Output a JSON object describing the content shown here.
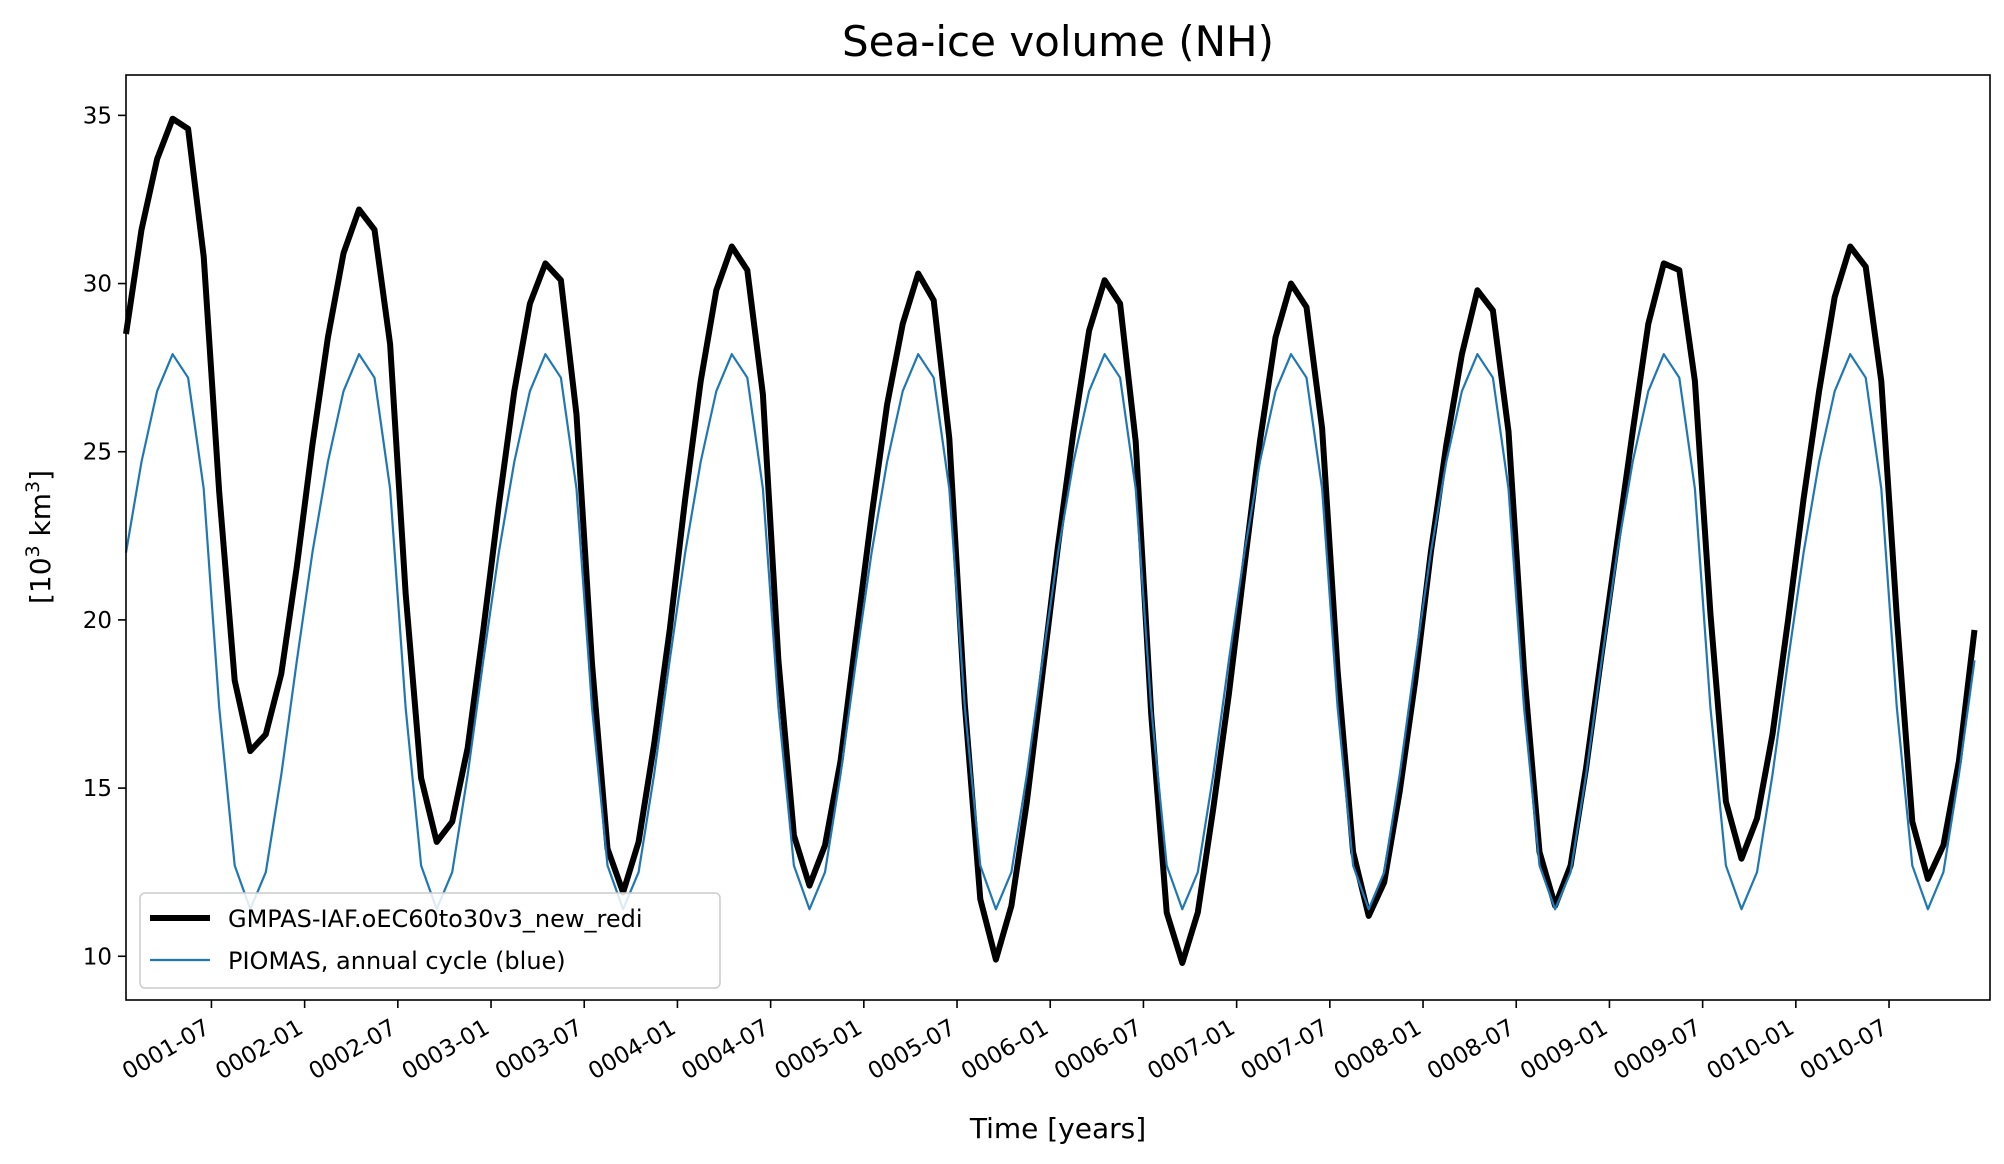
{
  "chart_data": {
    "type": "line",
    "title": "Sea-ice volume (NH)",
    "xlabel": "Time [years]",
    "ylabel_main": "[10",
    "ylabel_sup1": "3",
    "ylabel_mid": " km",
    "ylabel_sup2": "3",
    "ylabel_end": "]",
    "xlim_months": [
      0.5,
      120.5
    ],
    "ylim": [
      8.7,
      36.2
    ],
    "y_ticks": [
      10,
      15,
      20,
      25,
      30,
      35
    ],
    "y_tick_labels": [
      "10",
      "15",
      "20",
      "25",
      "30",
      "35"
    ],
    "x_ticks_month_index": [
      6,
      12,
      18,
      24,
      30,
      36,
      42,
      48,
      54,
      60,
      66,
      72,
      78,
      84,
      90,
      96,
      102,
      108,
      114
    ],
    "x_tick_labels": [
      "0001-07",
      "0002-01",
      "0002-07",
      "0003-01",
      "0003-07",
      "0004-01",
      "0004-07",
      "0005-01",
      "0005-07",
      "0006-01",
      "0006-07",
      "0007-01",
      "0007-07",
      "0008-01",
      "0008-07",
      "0009-01",
      "0009-07",
      "0010-01",
      "0010-07"
    ],
    "grid": false,
    "legend_position": "lower-left",
    "series": [
      {
        "name": "GMPAS-IAF.oEC60to30v3_new_redi",
        "color": "#000000",
        "x_month_index": [
          0.5,
          1.5,
          2.5,
          3.5,
          4.5,
          5.5,
          6.5,
          7.5,
          8.5,
          9.5,
          10.5,
          11.5,
          12.5,
          13.5,
          14.5,
          15.5,
          16.5,
          17.5,
          18.5,
          19.5,
          20.5,
          21.5,
          22.5,
          23.5,
          24.5,
          25.5,
          26.5,
          27.5,
          28.5,
          29.5,
          30.5,
          31.5,
          32.5,
          33.5,
          34.5,
          35.5,
          36.5,
          37.5,
          38.5,
          39.5,
          40.5,
          41.5,
          42.5,
          43.5,
          44.5,
          45.5,
          46.5,
          47.5,
          48.5,
          49.5,
          50.5,
          51.5,
          52.5,
          53.5,
          54.5,
          55.5,
          56.5,
          57.5,
          58.5,
          59.5,
          60.5,
          61.5,
          62.5,
          63.5,
          64.5,
          65.5,
          66.5,
          67.5,
          68.5,
          69.5,
          70.5,
          71.5,
          72.5,
          73.5,
          74.5,
          75.5,
          76.5,
          77.5,
          78.5,
          79.5,
          80.5,
          81.5,
          82.5,
          83.5,
          84.5,
          85.5,
          86.5,
          87.5,
          88.5,
          89.5,
          90.5,
          91.5,
          92.5,
          93.5,
          94.5,
          95.5,
          96.5,
          97.5,
          98.5,
          99.5,
          100.5,
          101.5,
          102.5,
          103.5,
          104.5,
          105.5,
          106.5,
          107.5,
          108.5,
          109.5,
          110.5,
          111.5,
          112.5,
          113.5,
          114.5,
          115.5,
          116.5,
          117.5,
          118.5,
          119.5,
          120.5
        ],
        "values": [
          28.5,
          31.6,
          33.7,
          34.9,
          34.6,
          30.8,
          23.8,
          18.2,
          16.1,
          16.6,
          18.4,
          21.6,
          25.2,
          28.4,
          30.9,
          32.2,
          31.6,
          28.2,
          20.8,
          15.3,
          13.4,
          14.0,
          16.2,
          19.7,
          23.4,
          26.8,
          29.4,
          30.6,
          30.1,
          26.1,
          18.7,
          13.2,
          11.9,
          13.4,
          16.3,
          19.7,
          23.6,
          27.1,
          29.8,
          31.1,
          30.4,
          26.7,
          18.8,
          13.6,
          12.1,
          13.3,
          15.8,
          19.5,
          23.1,
          26.4,
          28.8,
          30.3,
          29.5,
          25.4,
          17.5,
          11.7,
          9.9,
          11.5,
          14.6,
          18.4,
          22.2,
          25.6,
          28.6,
          30.1,
          29.4,
          25.3,
          17.2,
          11.3,
          9.8,
          11.3,
          14.4,
          17.8,
          21.6,
          25.3,
          28.4,
          30.0,
          29.3,
          25.7,
          18.5,
          13.1,
          11.2,
          12.2,
          14.9,
          18.2,
          22.0,
          25.2,
          27.9,
          29.8,
          29.2,
          25.6,
          18.5,
          13.1,
          11.5,
          12.7,
          15.6,
          19.0,
          22.3,
          25.6,
          28.8,
          30.6,
          30.4,
          27.1,
          20.2,
          14.6,
          12.9,
          14.1,
          16.6,
          20.0,
          23.6,
          26.8,
          29.6,
          31.1,
          30.5,
          27.1,
          20.1,
          14.0,
          12.3,
          13.3,
          15.8,
          19.7
        ]
      },
      {
        "name": "PIOMAS, annual cycle (blue)",
        "color": "#1f77b4",
        "x_month_index": [
          0.5,
          1.5,
          2.5,
          3.5,
          4.5,
          5.5,
          6.5,
          7.5,
          8.5,
          9.5,
          10.5,
          11.5,
          12.5,
          13.5,
          14.5,
          15.5,
          16.5,
          17.5,
          18.5,
          19.5,
          20.5,
          21.5,
          22.5,
          23.5,
          24.5,
          25.5,
          26.5,
          27.5,
          28.5,
          29.5,
          30.5,
          31.5,
          32.5,
          33.5,
          34.5,
          35.5,
          36.5,
          37.5,
          38.5,
          39.5,
          40.5,
          41.5,
          42.5,
          43.5,
          44.5,
          45.5,
          46.5,
          47.5,
          48.5,
          49.5,
          50.5,
          51.5,
          52.5,
          53.5,
          54.5,
          55.5,
          56.5,
          57.5,
          58.5,
          59.5,
          60.5,
          61.5,
          62.5,
          63.5,
          64.5,
          65.5,
          66.5,
          67.5,
          68.5,
          69.5,
          70.5,
          71.5,
          72.5,
          73.5,
          74.5,
          75.5,
          76.5,
          77.5,
          78.5,
          79.5,
          80.5,
          81.5,
          82.5,
          83.5,
          84.5,
          85.5,
          86.5,
          87.5,
          88.5,
          89.5,
          90.5,
          91.5,
          92.5,
          93.5,
          94.5,
          95.5,
          96.5,
          97.5,
          98.5,
          99.5,
          100.5,
          101.5,
          102.5,
          103.5,
          104.5,
          105.5,
          106.5,
          107.5,
          108.5,
          109.5,
          110.5,
          111.5,
          112.5,
          113.5,
          114.5,
          115.5,
          116.5,
          117.5,
          118.5,
          119.5,
          120.5
        ],
        "values": [
          22.0,
          24.7,
          26.8,
          27.9,
          27.2,
          23.9,
          17.4,
          12.7,
          11.4,
          12.5,
          15.4,
          18.8,
          22.0,
          24.7,
          26.8,
          27.9,
          27.2,
          23.9,
          17.4,
          12.7,
          11.4,
          12.5,
          15.4,
          18.8,
          22.0,
          24.7,
          26.8,
          27.9,
          27.2,
          23.9,
          17.4,
          12.7,
          11.4,
          12.5,
          15.4,
          18.8,
          22.0,
          24.7,
          26.8,
          27.9,
          27.2,
          23.9,
          17.4,
          12.7,
          11.4,
          12.5,
          15.4,
          18.8,
          22.0,
          24.7,
          26.8,
          27.9,
          27.2,
          23.9,
          17.4,
          12.7,
          11.4,
          12.5,
          15.4,
          18.8,
          22.0,
          24.7,
          26.8,
          27.9,
          27.2,
          23.9,
          17.4,
          12.7,
          11.4,
          12.5,
          15.4,
          18.8,
          22.0,
          24.7,
          26.8,
          27.9,
          27.2,
          23.9,
          17.4,
          12.7,
          11.4,
          12.5,
          15.4,
          18.8,
          22.0,
          24.7,
          26.8,
          27.9,
          27.2,
          23.9,
          17.4,
          12.7,
          11.4,
          12.5,
          15.4,
          18.8,
          22.0,
          24.7,
          26.8,
          27.9,
          27.2,
          23.9,
          17.4,
          12.7,
          11.4,
          12.5,
          15.4,
          18.8,
          22.0,
          24.7,
          26.8,
          27.9,
          27.2,
          23.9,
          17.4,
          12.7,
          11.4,
          12.5,
          15.4,
          18.8
        ]
      }
    ]
  }
}
